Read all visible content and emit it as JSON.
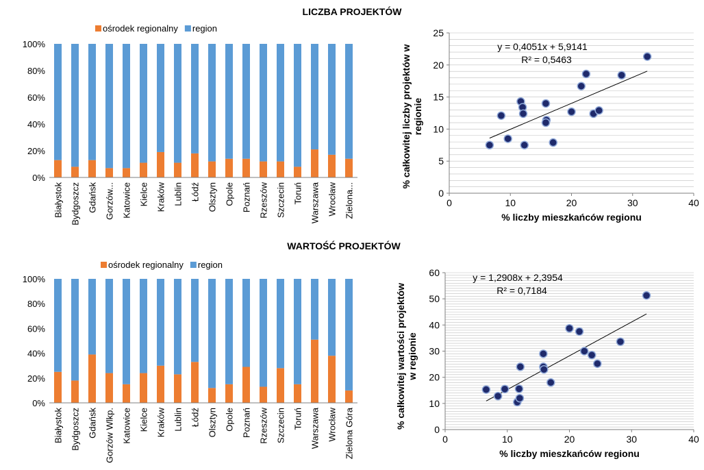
{
  "section_titles": {
    "top": "LICZBA PROJEKTÓW",
    "bottom": "WARTOŚĆ PROJEKTÓW"
  },
  "colors": {
    "orange": "#ED7D31",
    "blue": "#5B9BD5",
    "marker_fill": "#1F2A6B",
    "marker_stroke": "#8FA8D8",
    "grid": "#BFBFBF",
    "axis": "#7F7F7F"
  },
  "chart_data": [
    {
      "type": "bar",
      "stacked": "percent",
      "legend_position": "top",
      "categories": [
        "Białystok",
        "Bydgoszcz",
        "Gdańsk",
        "Gorzów...",
        "Katowice",
        "Kielce",
        "Kraków",
        "Lublin",
        "Łódź",
        "Olsztyn",
        "Opole",
        "Poznań",
        "Rzeszów",
        "Szczecin",
        "Toruń",
        "Warszawa",
        "Wrocław",
        "Zielona..."
      ],
      "series": [
        {
          "name": "ośrodek regionalny",
          "values": [
            13,
            8,
            13,
            7,
            7,
            11,
            19,
            11,
            18,
            12,
            14,
            14,
            12,
            12,
            8,
            21,
            17,
            14
          ]
        },
        {
          "name": "region",
          "values": [
            87,
            92,
            87,
            93,
            93,
            89,
            81,
            89,
            82,
            88,
            86,
            86,
            88,
            88,
            92,
            79,
            83,
            86
          ]
        }
      ],
      "y_ticks": [
        "0%",
        "20%",
        "40%",
        "60%",
        "80%",
        "100%"
      ],
      "ylim": [
        0,
        100
      ]
    },
    {
      "type": "scatter",
      "xlabel": "% liczby mieszkańców regionu",
      "ylabel_lines": [
        "% całkowitej liczby projektów w",
        "regionie"
      ],
      "xlim": [
        0,
        40
      ],
      "ylim": [
        0,
        25
      ],
      "x_ticks": [
        0,
        10,
        20,
        30,
        40
      ],
      "y_ticks": [
        0,
        5,
        10,
        15,
        20,
        25
      ],
      "grid": true,
      "points": [
        {
          "x": 6.6,
          "y": 7.5
        },
        {
          "x": 8.5,
          "y": 12.1
        },
        {
          "x": 9.6,
          "y": 8.5
        },
        {
          "x": 11.7,
          "y": 14.3
        },
        {
          "x": 12.0,
          "y": 13.4
        },
        {
          "x": 12.1,
          "y": 12.4
        },
        {
          "x": 12.3,
          "y": 7.5
        },
        {
          "x": 15.8,
          "y": 14.0
        },
        {
          "x": 15.9,
          "y": 11.4
        },
        {
          "x": 15.8,
          "y": 11.0
        },
        {
          "x": 17.0,
          "y": 7.9
        },
        {
          "x": 20.0,
          "y": 12.7
        },
        {
          "x": 21.6,
          "y": 16.7
        },
        {
          "x": 22.4,
          "y": 18.6
        },
        {
          "x": 23.6,
          "y": 12.4
        },
        {
          "x": 24.5,
          "y": 12.9
        },
        {
          "x": 28.2,
          "y": 18.4
        },
        {
          "x": 32.4,
          "y": 21.3
        }
      ],
      "trendline": {
        "slope": 0.4051,
        "intercept": 5.9141,
        "x_range": [
          6.6,
          32.4
        ]
      },
      "equation": "y = 0,4051x + 5,9141",
      "r2": "R² = 0,5463"
    },
    {
      "type": "bar",
      "stacked": "percent",
      "legend_position": "top",
      "categories": [
        "Białystok",
        "Bydgoszcz",
        "Gdańsk",
        "Gorzów Wlkp.",
        "Katowice",
        "Kielce",
        "Kraków",
        "Lublin",
        "Łódź",
        "Olsztyn",
        "Opole",
        "Poznań",
        "Rzeszów",
        "Szczecin",
        "Toruń",
        "Warszawa",
        "Wrocław",
        "Zielona Góra"
      ],
      "series": [
        {
          "name": "ośrodek regionalny",
          "values": [
            25,
            18,
            39,
            24,
            15,
            24,
            30,
            23,
            33,
            12,
            15,
            29,
            13,
            28,
            15,
            51,
            38,
            10
          ]
        },
        {
          "name": "region",
          "values": [
            75,
            82,
            61,
            76,
            85,
            76,
            70,
            77,
            67,
            88,
            85,
            71,
            87,
            72,
            85,
            49,
            62,
            90
          ]
        }
      ],
      "y_ticks": [
        "0%",
        "20%",
        "40%",
        "60%",
        "80%",
        "100%"
      ],
      "ylim": [
        0,
        100
      ]
    },
    {
      "type": "scatter",
      "xlabel": "% liczby mieszkańców regionu",
      "ylabel_lines": [
        "% całkowitej wartości projektów",
        "w regionie"
      ],
      "xlim": [
        0,
        40
      ],
      "ylim": [
        0,
        60
      ],
      "x_ticks": [
        0,
        10,
        20,
        30,
        40
      ],
      "y_ticks": [
        0,
        10,
        20,
        30,
        40,
        50,
        60
      ],
      "grid": true,
      "points": [
        {
          "x": 6.6,
          "y": 15.3
        },
        {
          "x": 8.5,
          "y": 12.8
        },
        {
          "x": 9.6,
          "y": 15.5
        },
        {
          "x": 11.6,
          "y": 10.5
        },
        {
          "x": 11.9,
          "y": 15.6
        },
        {
          "x": 12.0,
          "y": 12.0
        },
        {
          "x": 12.1,
          "y": 24.0
        },
        {
          "x": 15.8,
          "y": 29.0
        },
        {
          "x": 15.8,
          "y": 24.0
        },
        {
          "x": 15.9,
          "y": 23.0
        },
        {
          "x": 17.0,
          "y": 18.0
        },
        {
          "x": 20.0,
          "y": 38.7
        },
        {
          "x": 21.6,
          "y": 37.5
        },
        {
          "x": 22.4,
          "y": 30.0
        },
        {
          "x": 23.6,
          "y": 28.5
        },
        {
          "x": 24.5,
          "y": 25.2
        },
        {
          "x": 28.2,
          "y": 33.6
        },
        {
          "x": 32.4,
          "y": 51.3
        }
      ],
      "trendline": {
        "slope": 1.2908,
        "intercept": 2.3954,
        "x_range": [
          6.6,
          32.4
        ]
      },
      "equation": "y = 1,2908x + 2,3954",
      "r2": "R² = 0,7184"
    }
  ]
}
